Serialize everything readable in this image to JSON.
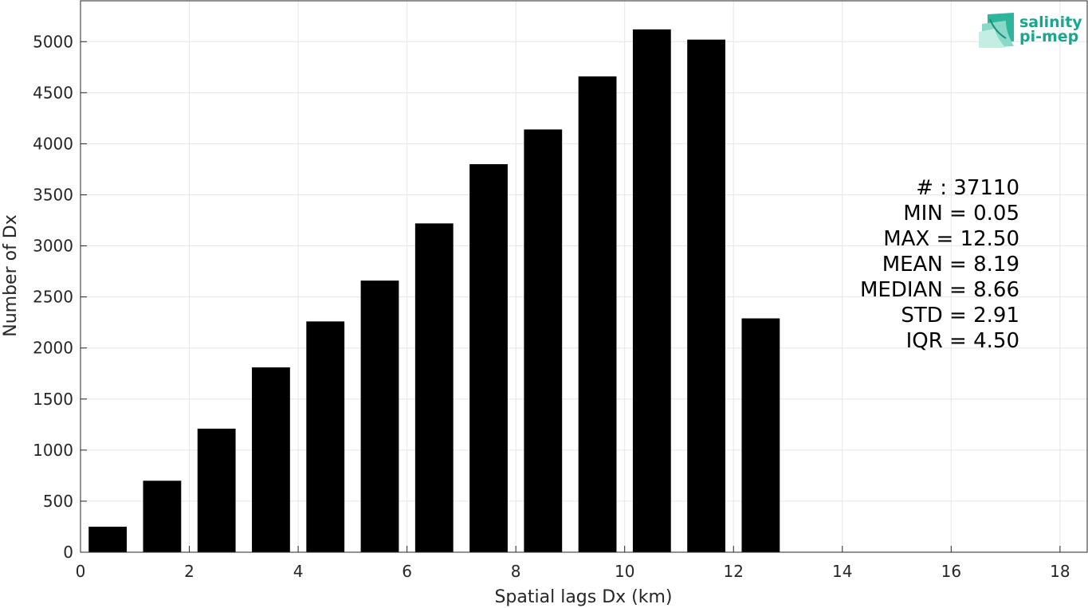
{
  "chart_data": {
    "type": "bar",
    "xlabel": "Spatial lags Dx (km)",
    "ylabel": "Number of Dx",
    "xlim": [
      0,
      18.5
    ],
    "ylim": [
      0,
      5400
    ],
    "x_ticks": [
      0,
      2,
      4,
      6,
      8,
      10,
      12,
      14,
      16,
      18
    ],
    "y_ticks": [
      0,
      500,
      1000,
      1500,
      2000,
      2500,
      3000,
      3500,
      4000,
      4500,
      5000
    ],
    "grid": true,
    "bar_width": 0.7,
    "x": [
      0.5,
      1.5,
      2.5,
      3.5,
      4.5,
      5.5,
      6.5,
      7.5,
      8.5,
      9.5,
      10.5,
      11.5,
      12.5
    ],
    "values": [
      250,
      700,
      1210,
      1810,
      2260,
      2660,
      3220,
      3800,
      4140,
      4660,
      5120,
      5020,
      2290
    ],
    "bar_color": "#000000",
    "grid_color": "#e6e6e6",
    "axis_color": "#262626",
    "stats": [
      "# : 37110",
      "MIN = 0.05",
      "MAX =  12.50",
      "MEAN = 8.19",
      "MEDIAN = 8.66",
      "STD = 2.91",
      "IQR = 4.50"
    ]
  },
  "logo": {
    "line1": "salinity",
    "line2": "pi-mep",
    "color": "#1aa58f"
  }
}
